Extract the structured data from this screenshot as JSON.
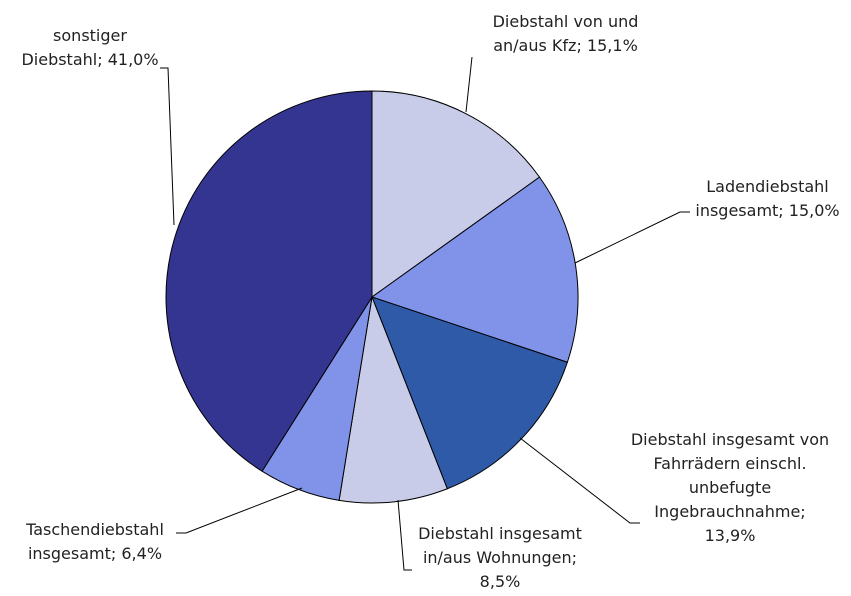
{
  "chart_data": {
    "type": "pie",
    "categories": [
      "Diebstahl von und an/aus Kfz;",
      "Ladendiebstahl insgesamt;",
      "Diebstahl insgesamt von Fahrrädern einschl. unbefugte Ingebrauchnahme;",
      "Diebstahl insgesamt in/aus Wohnungen;",
      "Taschendiebstahl insgesamt;",
      "sonstiger Diebstahl;"
    ],
    "values": [
      15.1,
      15.0,
      13.9,
      8.5,
      6.4,
      41.0
    ],
    "value_labels": [
      "15,1%",
      "15,0%",
      "13,9%",
      "8,5%",
      "6,4%",
      "41,0%"
    ],
    "colors": [
      "#c8cce8",
      "#8093e8",
      "#2e5aa8",
      "#c8cce8",
      "#8093e8",
      "#343591"
    ]
  }
}
